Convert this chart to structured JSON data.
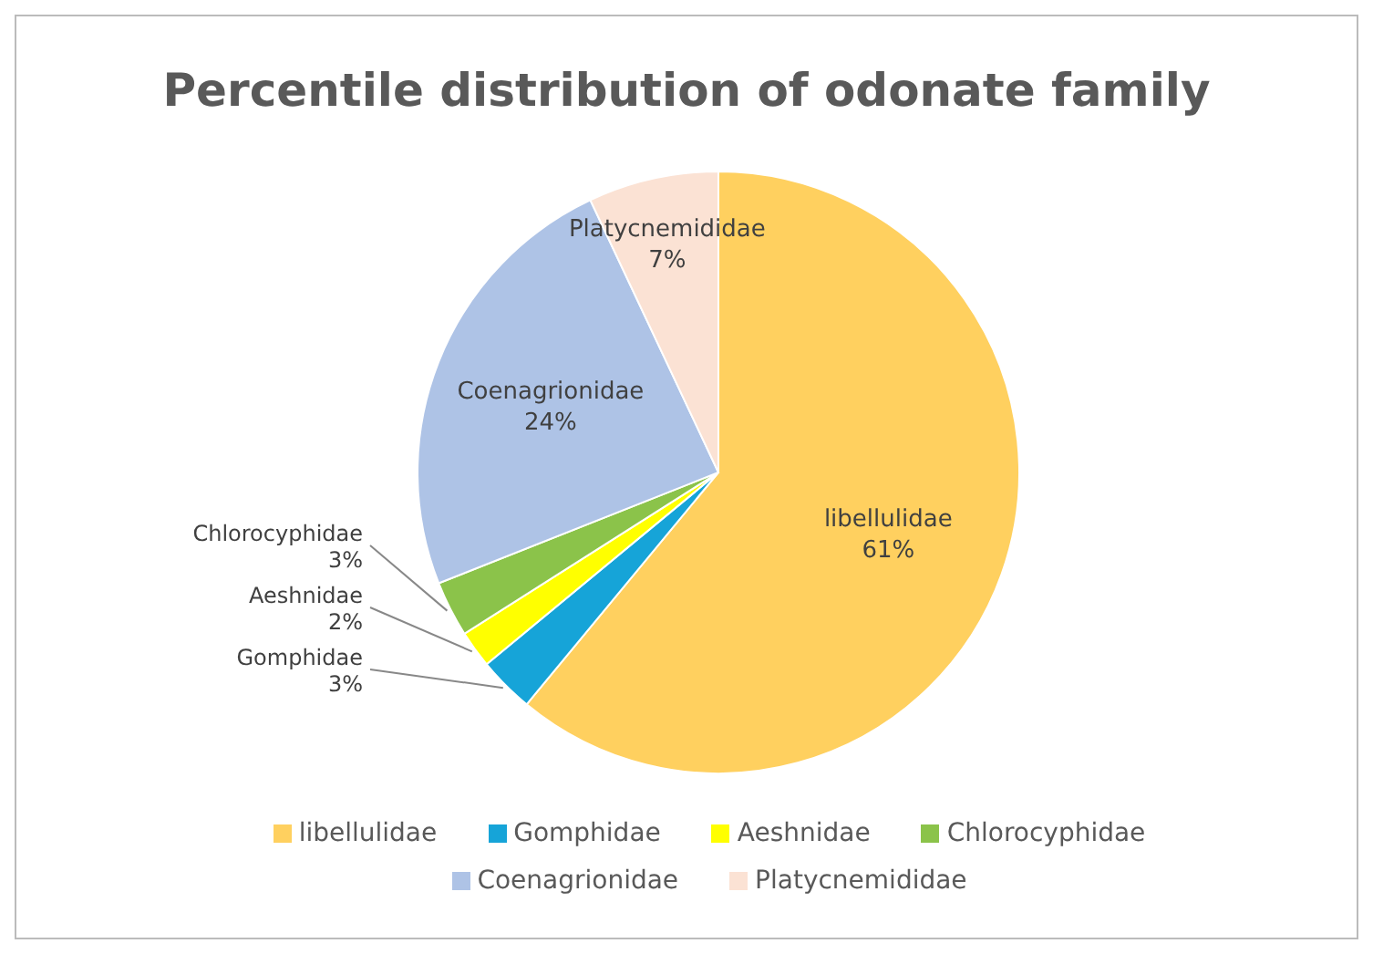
{
  "chart_data": {
    "type": "pie",
    "title": "Percentile distribution of odonate family",
    "categories": [
      "libellulidae",
      "Gomphidae",
      "Aeshnidae",
      "Chlorocyphidae",
      "Coenagrionidae",
      "Platycnemididae"
    ],
    "values": [
      61,
      3,
      2,
      3,
      24,
      7
    ],
    "value_labels": [
      "61%",
      "3%",
      "2%",
      "3%",
      "24%",
      "7%"
    ],
    "colors": [
      "#ffd05f",
      "#16a4d8",
      "#ffff00",
      "#8bc34a",
      "#aec3e6",
      "#fbe2d4"
    ],
    "legend": "bottom"
  }
}
